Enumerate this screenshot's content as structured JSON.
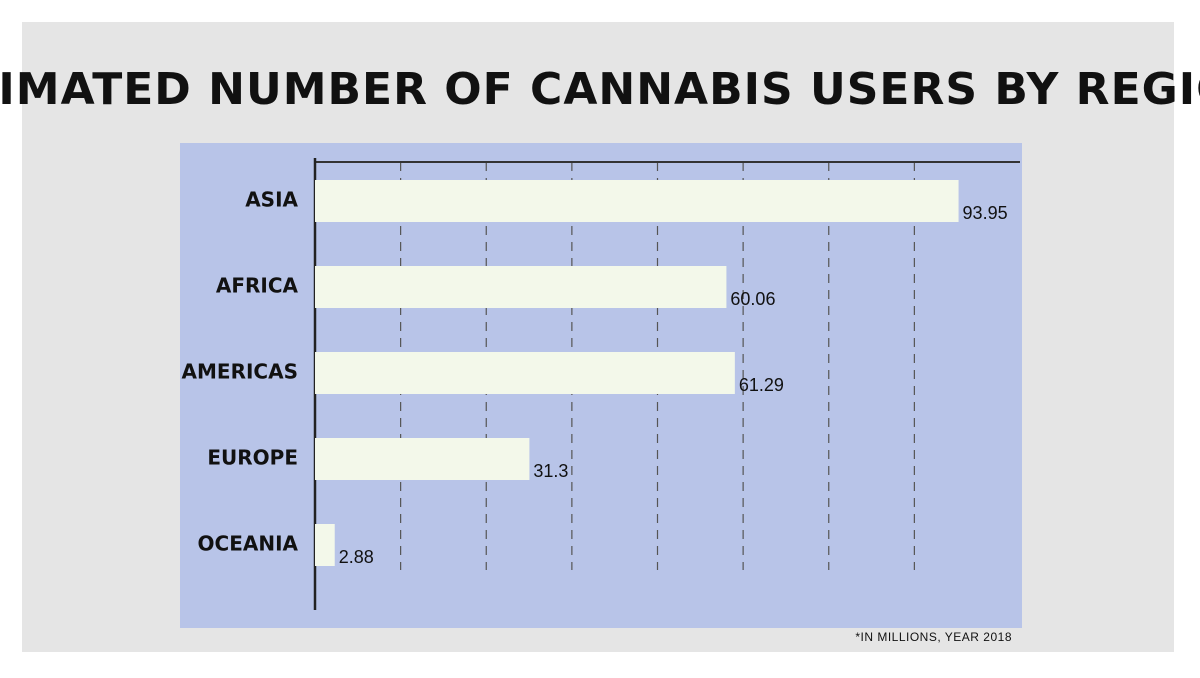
{
  "chart_data": {
    "type": "bar",
    "orientation": "horizontal",
    "title": "ESTIMATED NUMBER OF CANNABIS USERS BY REGION*",
    "categories": [
      "ASIA",
      "AFRICA",
      "AMERICAS",
      "EUROPE",
      "OCEANIA"
    ],
    "values": [
      93.95,
      60.06,
      61.29,
      31.3,
      2.88
    ],
    "color": "#f3f8ea",
    "xlim": [
      0,
      100
    ],
    "xticks": [
      12.5,
      25,
      37.5,
      50,
      62.5,
      75,
      87.5
    ],
    "grid": true,
    "footnote": "*IN MILLIONS, YEAR 2018"
  }
}
